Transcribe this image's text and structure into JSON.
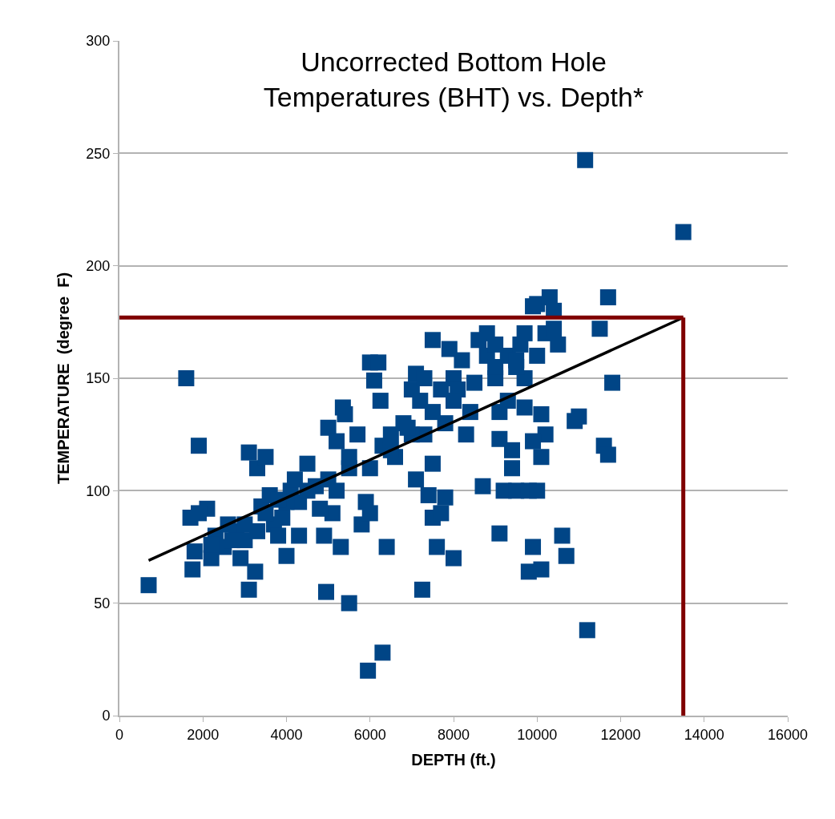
{
  "chart_data": {
    "type": "scatter",
    "title": "Uncorrected Bottom Hole\nTemperatures (BHT) vs. Depth*",
    "xlabel": "DEPTH (ft.)",
    "ylabel": "TEMPERATURE  (degree  F)",
    "xlim": [
      0,
      16000
    ],
    "xticks": [
      0,
      2000,
      4000,
      6000,
      8000,
      10000,
      12000,
      14000,
      16000
    ],
    "ylim": [
      0,
      300
    ],
    "yticks": [
      0,
      50,
      100,
      150,
      200,
      250,
      300
    ],
    "grid": "y",
    "series": [
      {
        "marker": "square",
        "color": "#004586",
        "x": [
          700,
          1600,
          1900,
          1750,
          1800,
          1700,
          2100,
          1900,
          2200,
          2300,
          2500,
          2600,
          2800,
          2900,
          3000,
          3100,
          3100,
          3300,
          3250,
          3500,
          3400,
          3600,
          3700,
          3800,
          3900,
          4000,
          4100,
          4200,
          4300,
          4300,
          4500,
          4700,
          4900,
          4950,
          5000,
          5100,
          5200,
          5300,
          5350,
          5400,
          5500,
          5500,
          5700,
          5800,
          5900,
          5950,
          6000,
          6000,
          6100,
          6200,
          6250,
          6300,
          6300,
          6400,
          6500,
          6600,
          6800,
          7000,
          7100,
          7100,
          7200,
          7250,
          7300,
          7400,
          7500,
          7500,
          7500,
          7600,
          7700,
          7800,
          7800,
          7900,
          8000,
          8000,
          8100,
          8200,
          8300,
          8400,
          8600,
          8700,
          8800,
          9000,
          9100,
          9100,
          9200,
          9100,
          9300,
          9400,
          9400,
          9500,
          9600,
          9700,
          9800,
          9800,
          9900,
          9900,
          10000,
          10100,
          10000,
          10100,
          10200,
          10300,
          10400,
          10500,
          10600,
          10700,
          10900,
          11000,
          11150,
          11200,
          11500,
          11600,
          11700,
          11700,
          11800,
          13500,
          3000,
          3500,
          4000,
          4500,
          5000,
          5500,
          6000,
          6500,
          7000,
          7500,
          8000,
          8500,
          9000,
          9500,
          10000,
          10200,
          9700,
          7300,
          7700,
          6900,
          5200,
          4800,
          3800,
          3300,
          2200,
          2700,
          9300,
          9700,
          10100,
          9900,
          9500,
          9000,
          8800,
          10400
        ],
        "values": [
          58,
          150,
          120,
          65,
          73,
          88,
          92,
          90,
          70,
          80,
          75,
          85,
          82,
          70,
          78,
          56,
          117,
          110,
          64,
          115,
          93,
          98,
          85,
          80,
          88,
          71,
          100,
          105,
          80,
          95,
          112,
          102,
          80,
          55,
          128,
          90,
          122,
          75,
          137,
          134,
          50,
          110,
          125,
          85,
          95,
          20,
          90,
          157,
          149,
          157,
          140,
          28,
          120,
          75,
          125,
          115,
          130,
          145,
          152,
          105,
          140,
          56,
          125,
          98,
          88,
          167,
          112,
          75,
          90,
          130,
          97,
          163,
          70,
          150,
          145,
          158,
          125,
          135,
          167,
          102,
          160,
          150,
          81,
          123,
          100,
          135,
          160,
          110,
          118,
          100,
          165,
          170,
          64,
          100,
          75,
          182,
          183,
          65,
          100,
          115,
          125,
          186,
          180,
          165,
          80,
          71,
          131,
          133,
          247,
          38,
          172,
          120,
          116,
          186,
          148,
          215,
          85,
          90,
          95,
          100,
          105,
          115,
          110,
          118,
          125,
          135,
          140,
          148,
          155,
          158,
          160,
          170,
          150,
          150,
          145,
          128,
          100,
          92,
          96,
          82,
          76,
          78,
          140,
          137,
          134,
          122,
          155,
          165,
          170,
          172
        ]
      },
      {
        "type": "line",
        "color": "#000000",
        "x": [
          700,
          13500
        ],
        "values": [
          69,
          177
        ]
      }
    ],
    "ref_lines": [
      {
        "axis": "y",
        "value": 177,
        "color": "#7f0000"
      },
      {
        "axis": "x",
        "value": 13500,
        "color": "#7f0000"
      }
    ]
  }
}
